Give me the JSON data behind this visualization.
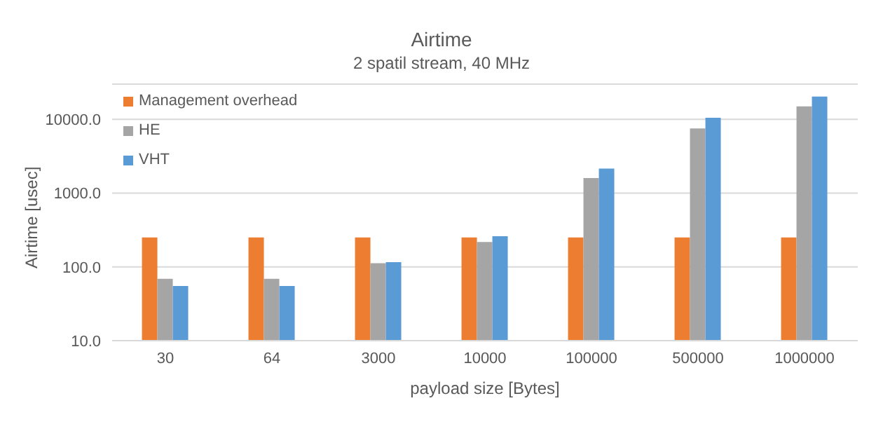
{
  "chart_data": {
    "type": "bar",
    "title": "Airtime",
    "subtitle": "2 spatil stream, 40 MHz",
    "xlabel": "payload size [Bytes]",
    "ylabel": "Airtime [usec]",
    "categories": [
      "30",
      "64",
      "3000",
      "10000",
      "100000",
      "500000",
      "1000000"
    ],
    "series": [
      {
        "name": "Management overhead",
        "color": "#ed7d31",
        "values": [
          250,
          250,
          250,
          250,
          250,
          250,
          250
        ]
      },
      {
        "name": "HE",
        "color": "#a5a5a5",
        "values": [
          69,
          69,
          112,
          217,
          1600,
          7500,
          15000
        ]
      },
      {
        "name": "VHT",
        "color": "#5b9bd5",
        "values": [
          55,
          55,
          116,
          260,
          2150,
          10500,
          20400
        ]
      }
    ],
    "log": "y",
    "ylim": [
      10,
      30000
    ],
    "yticks": [
      {
        "value": 10,
        "label": "10.0"
      },
      {
        "value": 100,
        "label": "100.0"
      },
      {
        "value": 1000,
        "label": "1000.0"
      },
      {
        "value": 10000,
        "label": "10000.0"
      }
    ],
    "grid": "y",
    "legend": "top left"
  }
}
